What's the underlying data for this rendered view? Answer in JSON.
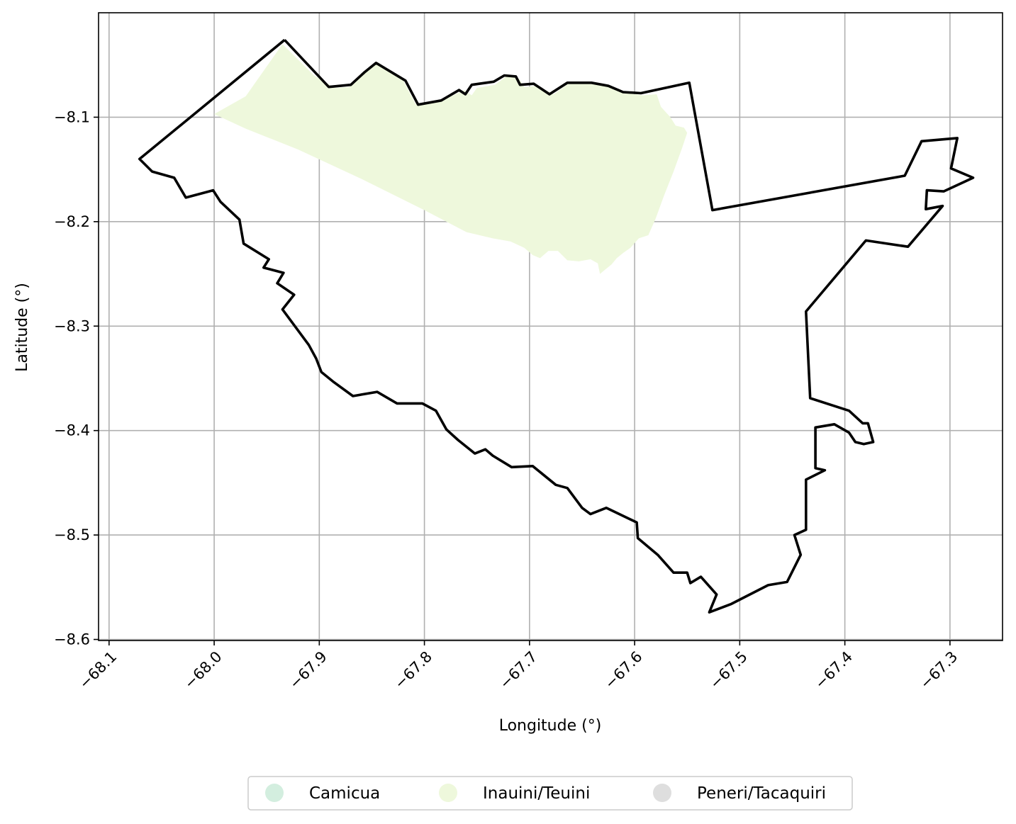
{
  "chart_data": {
    "type": "map",
    "title": "",
    "xlabel": "Longitude (°)",
    "ylabel": "Latitude (°)",
    "xlim": [
      -68.11,
      -67.25
    ],
    "ylim": [
      -8.601,
      -8.0
    ],
    "grid": true,
    "x_ticks": [
      {
        "value": -68.1,
        "label": "−68.1"
      },
      {
        "value": -68.0,
        "label": "−68.0"
      },
      {
        "value": -67.9,
        "label": "−67.9"
      },
      {
        "value": -67.8,
        "label": "−67.8"
      },
      {
        "value": -67.7,
        "label": "−67.7"
      },
      {
        "value": -67.6,
        "label": "−67.6"
      },
      {
        "value": -67.5,
        "label": "−67.5"
      },
      {
        "value": -67.4,
        "label": "−67.4"
      },
      {
        "value": -67.3,
        "label": "−67.3"
      }
    ],
    "y_ticks": [
      {
        "value": -8.1,
        "label": "−8.1"
      },
      {
        "value": -8.2,
        "label": "−8.2"
      },
      {
        "value": -8.3,
        "label": "−8.3"
      },
      {
        "value": -8.4,
        "label": "−8.4"
      },
      {
        "value": -8.5,
        "label": "−8.5"
      },
      {
        "value": -8.6,
        "label": "−8.6"
      }
    ],
    "legend": {
      "placement": "bottom-center",
      "entries": [
        {
          "label": "Camicua",
          "color": "#d3eedf"
        },
        {
          "label": "Inauini/Teuini",
          "color": "#eef8dc"
        },
        {
          "label": "Peneri/Tacaquiri",
          "color": "#dedede"
        }
      ]
    },
    "territory": {
      "name": "Inauini/Teuini",
      "color": "#eef8dc",
      "points": [
        [
          -68.0,
          -8.097
        ],
        [
          -67.97,
          -8.08
        ],
        [
          -67.935,
          -8.03
        ],
        [
          -67.905,
          -8.06
        ],
        [
          -67.885,
          -8.072
        ],
        [
          -67.872,
          -8.071
        ],
        [
          -67.858,
          -8.058
        ],
        [
          -67.845,
          -8.047
        ],
        [
          -67.82,
          -8.065
        ],
        [
          -67.808,
          -8.088
        ],
        [
          -67.785,
          -8.085
        ],
        [
          -67.762,
          -8.074
        ],
        [
          -67.755,
          -8.079
        ],
        [
          -67.75,
          -8.072
        ],
        [
          -67.733,
          -8.069
        ],
        [
          -67.722,
          -8.061
        ],
        [
          -67.71,
          -8.063
        ],
        [
          -67.705,
          -8.071
        ],
        [
          -67.692,
          -8.07
        ],
        [
          -67.677,
          -8.078
        ],
        [
          -67.663,
          -8.068
        ],
        [
          -67.638,
          -8.068
        ],
        [
          -67.62,
          -8.071
        ],
        [
          -67.607,
          -8.077
        ],
        [
          -67.592,
          -8.079
        ],
        [
          -67.579,
          -8.078
        ],
        [
          -67.575,
          -8.09
        ],
        [
          -67.566,
          -8.1
        ],
        [
          -67.561,
          -8.108
        ],
        [
          -67.553,
          -8.11
        ],
        [
          -67.55,
          -8.115
        ],
        [
          -67.555,
          -8.13
        ],
        [
          -67.563,
          -8.152
        ],
        [
          -67.572,
          -8.175
        ],
        [
          -67.58,
          -8.197
        ],
        [
          -67.587,
          -8.213
        ],
        [
          -67.596,
          -8.216
        ],
        [
          -67.604,
          -8.225
        ],
        [
          -67.611,
          -8.23
        ],
        [
          -67.617,
          -8.235
        ],
        [
          -67.622,
          -8.241
        ],
        [
          -67.627,
          -8.245
        ],
        [
          -67.633,
          -8.25
        ],
        [
          -67.635,
          -8.24
        ],
        [
          -67.642,
          -8.236
        ],
        [
          -67.653,
          -8.238
        ],
        [
          -67.664,
          -8.237
        ],
        [
          -67.673,
          -8.228
        ],
        [
          -67.682,
          -8.228
        ],
        [
          -67.69,
          -8.235
        ],
        [
          -67.697,
          -8.232
        ],
        [
          -67.705,
          -8.225
        ],
        [
          -67.718,
          -8.219
        ],
        [
          -67.735,
          -8.216
        ],
        [
          -67.76,
          -8.21
        ],
        [
          -67.8,
          -8.189
        ],
        [
          -67.86,
          -8.159
        ],
        [
          -67.92,
          -8.131
        ],
        [
          -67.97,
          -8.111
        ]
      ]
    },
    "boundary": {
      "color": "#000000",
      "points": [
        [
          -67.933,
          -8.026
        ],
        [
          -67.891,
          -8.071
        ],
        [
          -67.87,
          -8.069
        ],
        [
          -67.857,
          -8.057
        ],
        [
          -67.846,
          -8.048
        ],
        [
          -67.818,
          -8.065
        ],
        [
          -67.806,
          -8.088
        ],
        [
          -67.784,
          -8.084
        ],
        [
          -67.767,
          -8.074
        ],
        [
          -67.761,
          -8.078
        ],
        [
          -67.755,
          -8.069
        ],
        [
          -67.734,
          -8.066
        ],
        [
          -67.724,
          -8.06
        ],
        [
          -67.713,
          -8.061
        ],
        [
          -67.709,
          -8.069
        ],
        [
          -67.696,
          -8.068
        ],
        [
          -67.681,
          -8.078
        ],
        [
          -67.664,
          -8.067
        ],
        [
          -67.641,
          -8.067
        ],
        [
          -67.625,
          -8.07
        ],
        [
          -67.611,
          -8.076
        ],
        [
          -67.594,
          -8.077
        ],
        [
          -67.548,
          -8.067
        ],
        [
          -67.526,
          -8.189
        ],
        [
          -67.343,
          -8.156
        ],
        [
          -67.327,
          -8.123
        ],
        [
          -67.293,
          -8.12
        ],
        [
          -67.299,
          -8.149
        ],
        [
          -67.278,
          -8.158
        ],
        [
          -67.306,
          -8.171
        ],
        [
          -67.322,
          -8.17
        ],
        [
          -67.323,
          -8.188
        ],
        [
          -67.307,
          -8.185
        ],
        [
          -67.34,
          -8.224
        ],
        [
          -67.38,
          -8.218
        ],
        [
          -67.437,
          -8.286
        ],
        [
          -67.433,
          -8.369
        ],
        [
          -67.396,
          -8.381
        ],
        [
          -67.383,
          -8.393
        ],
        [
          -67.378,
          -8.393
        ],
        [
          -67.373,
          -8.411
        ],
        [
          -67.382,
          -8.413
        ],
        [
          -67.39,
          -8.411
        ],
        [
          -67.396,
          -8.402
        ],
        [
          -67.41,
          -8.394
        ],
        [
          -67.428,
          -8.397
        ],
        [
          -67.428,
          -8.436
        ],
        [
          -67.419,
          -8.438
        ],
        [
          -67.437,
          -8.447
        ],
        [
          -67.437,
          -8.495
        ],
        [
          -67.448,
          -8.5
        ],
        [
          -67.442,
          -8.519
        ],
        [
          -67.455,
          -8.545
        ],
        [
          -67.473,
          -8.548
        ],
        [
          -67.508,
          -8.566
        ],
        [
          -67.529,
          -8.574
        ],
        [
          -67.522,
          -8.557
        ],
        [
          -67.537,
          -8.54
        ],
        [
          -67.547,
          -8.546
        ],
        [
          -67.55,
          -8.536
        ],
        [
          -67.563,
          -8.536
        ],
        [
          -67.578,
          -8.519
        ],
        [
          -67.597,
          -8.503
        ],
        [
          -67.598,
          -8.488
        ],
        [
          -67.627,
          -8.474
        ],
        [
          -67.642,
          -8.48
        ],
        [
          -67.65,
          -8.474
        ],
        [
          -67.664,
          -8.455
        ],
        [
          -67.675,
          -8.452
        ],
        [
          -67.697,
          -8.434
        ],
        [
          -67.717,
          -8.435
        ],
        [
          -67.735,
          -8.424
        ],
        [
          -67.742,
          -8.418
        ],
        [
          -67.752,
          -8.422
        ],
        [
          -67.768,
          -8.409
        ],
        [
          -67.779,
          -8.399
        ],
        [
          -67.789,
          -8.381
        ],
        [
          -67.802,
          -8.374
        ],
        [
          -67.826,
          -8.374
        ],
        [
          -67.845,
          -8.363
        ],
        [
          -67.868,
          -8.367
        ],
        [
          -67.887,
          -8.353
        ],
        [
          -67.898,
          -8.344
        ],
        [
          -67.903,
          -8.331
        ],
        [
          -67.91,
          -8.318
        ],
        [
          -67.935,
          -8.284
        ],
        [
          -67.924,
          -8.27
        ],
        [
          -67.94,
          -8.259
        ],
        [
          -67.934,
          -8.249
        ],
        [
          -67.953,
          -8.244
        ],
        [
          -67.948,
          -8.236
        ],
        [
          -67.972,
          -8.221
        ],
        [
          -67.976,
          -8.198
        ],
        [
          -67.994,
          -8.181
        ],
        [
          -68.001,
          -8.17
        ],
        [
          -68.027,
          -8.177
        ],
        [
          -68.038,
          -8.158
        ],
        [
          -68.059,
          -8.152
        ],
        [
          -68.071,
          -8.14
        ],
        [
          -67.933,
          -8.026
        ]
      ]
    }
  }
}
